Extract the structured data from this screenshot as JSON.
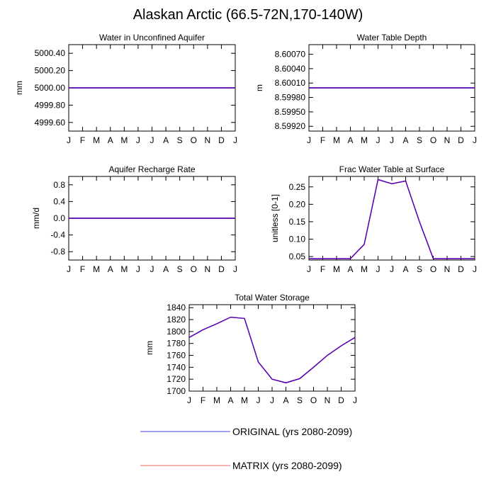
{
  "title": "Alaskan Arctic (66.5-72N,170-140W)",
  "colors": {
    "original": "#3f3fcf",
    "matrix": "#e04040",
    "overlap": "#5a00b4"
  },
  "legend": {
    "entries": [
      {
        "label": "ORIGINAL (yrs 2080-2099)",
        "color": "#6a6ae0"
      },
      {
        "label": "MATRIX (yrs 2080-2099)",
        "color": "#f08080"
      }
    ]
  },
  "chart_data": [
    {
      "type": "line",
      "title": "Water in Unconfined Aquifer",
      "ylabel": "mm",
      "x": [
        "J",
        "F",
        "M",
        "A",
        "M",
        "J",
        "J",
        "A",
        "S",
        "O",
        "N",
        "D",
        "J"
      ],
      "ylim": [
        4999.5,
        5000.5
      ],
      "yticks": [
        4999.6,
        4999.8,
        5000.0,
        5000.2,
        5000.4
      ],
      "ytick_labels": [
        "4999.60",
        "4999.80",
        "5000.00",
        "5000.20",
        "5000.40"
      ],
      "series": [
        {
          "name": "ORIGINAL (yrs 2080-2099)",
          "values": [
            5000,
            5000,
            5000,
            5000,
            5000,
            5000,
            5000,
            5000,
            5000,
            5000,
            5000,
            5000,
            5000
          ]
        },
        {
          "name": "MATRIX (yrs 2080-2099)",
          "values": [
            5000,
            5000,
            5000,
            5000,
            5000,
            5000,
            5000,
            5000,
            5000,
            5000,
            5000,
            5000,
            5000
          ]
        }
      ]
    },
    {
      "type": "line",
      "title": "Water Table Depth",
      "ylabel": "m",
      "x": [
        "J",
        "F",
        "M",
        "A",
        "M",
        "J",
        "J",
        "A",
        "S",
        "O",
        "N",
        "D",
        "J"
      ],
      "ylim": [
        8.5991,
        8.6009
      ],
      "yticks": [
        8.5992,
        8.5995,
        8.5998,
        8.6001,
        8.6004,
        8.6007
      ],
      "ytick_labels": [
        "8.59920",
        "8.59950",
        "8.59980",
        "8.60010",
        "8.60040",
        "8.60070"
      ],
      "series": [
        {
          "name": "ORIGINAL (yrs 2080-2099)",
          "values": [
            8.6,
            8.6,
            8.6,
            8.6,
            8.6,
            8.6,
            8.6,
            8.6,
            8.6,
            8.6,
            8.6,
            8.6,
            8.6
          ]
        },
        {
          "name": "MATRIX (yrs 2080-2099)",
          "values": [
            8.6,
            8.6,
            8.6,
            8.6,
            8.6,
            8.6,
            8.6,
            8.6,
            8.6,
            8.6,
            8.6,
            8.6,
            8.6
          ]
        }
      ]
    },
    {
      "type": "line",
      "title": "Aquifer Recharge Rate",
      "ylabel": "mm/d",
      "x": [
        "J",
        "F",
        "M",
        "A",
        "M",
        "J",
        "J",
        "A",
        "S",
        "O",
        "N",
        "D",
        "J"
      ],
      "ylim": [
        -1.0,
        1.0
      ],
      "yticks": [
        -0.8,
        -0.4,
        0.0,
        0.4,
        0.8
      ],
      "ytick_labels": [
        "-0.8",
        "-0.4",
        "0.0",
        "0.4",
        "0.8"
      ],
      "series": [
        {
          "name": "ORIGINAL (yrs 2080-2099)",
          "values": [
            0,
            0,
            0,
            0,
            0,
            0,
            0,
            0,
            0,
            0,
            0,
            0,
            0
          ]
        },
        {
          "name": "MATRIX (yrs 2080-2099)",
          "values": [
            0,
            0,
            0,
            0,
            0,
            0,
            0,
            0,
            0,
            0,
            0,
            0,
            0
          ]
        }
      ]
    },
    {
      "type": "line",
      "title": "Frac Water Table at Surface",
      "ylabel": "unitless [0-1]",
      "x": [
        "J",
        "F",
        "M",
        "A",
        "M",
        "J",
        "J",
        "A",
        "S",
        "O",
        "N",
        "D",
        "J"
      ],
      "ylim": [
        0.04,
        0.28
      ],
      "yticks": [
        0.05,
        0.1,
        0.15,
        0.2,
        0.25
      ],
      "ytick_labels": [
        "0.05",
        "0.10",
        "0.15",
        "0.20",
        "0.25"
      ],
      "series": [
        {
          "name": "ORIGINAL (yrs 2080-2099)",
          "values": [
            0.044,
            0.044,
            0.044,
            0.044,
            0.085,
            0.271,
            0.259,
            0.267,
            0.15,
            0.044,
            0.044,
            0.044,
            0.044
          ]
        },
        {
          "name": "MATRIX (yrs 2080-2099)",
          "values": [
            0.044,
            0.044,
            0.044,
            0.044,
            0.085,
            0.271,
            0.259,
            0.267,
            0.15,
            0.044,
            0.044,
            0.044,
            0.044
          ]
        }
      ]
    },
    {
      "type": "line",
      "title": "Total Water Storage",
      "ylabel": "mm",
      "x": [
        "J",
        "F",
        "M",
        "A",
        "M",
        "J",
        "J",
        "A",
        "S",
        "O",
        "N",
        "D",
        "J"
      ],
      "ylim": [
        1700,
        1845
      ],
      "yticks": [
        1700,
        1720,
        1740,
        1760,
        1780,
        1800,
        1820,
        1840
      ],
      "ytick_labels": [
        "1700",
        "1720",
        "1740",
        "1760",
        "1780",
        "1800",
        "1820",
        "1840"
      ],
      "series": [
        {
          "name": "ORIGINAL (yrs 2080-2099)",
          "values": [
            1790,
            1803,
            1813,
            1824,
            1822,
            1749,
            1720,
            1714,
            1721,
            1740,
            1760,
            1776,
            1790
          ]
        },
        {
          "name": "MATRIX (yrs 2080-2099)",
          "values": [
            1790,
            1803,
            1813,
            1824,
            1822,
            1749,
            1720,
            1714,
            1721,
            1740,
            1760,
            1776,
            1790
          ]
        }
      ]
    }
  ]
}
